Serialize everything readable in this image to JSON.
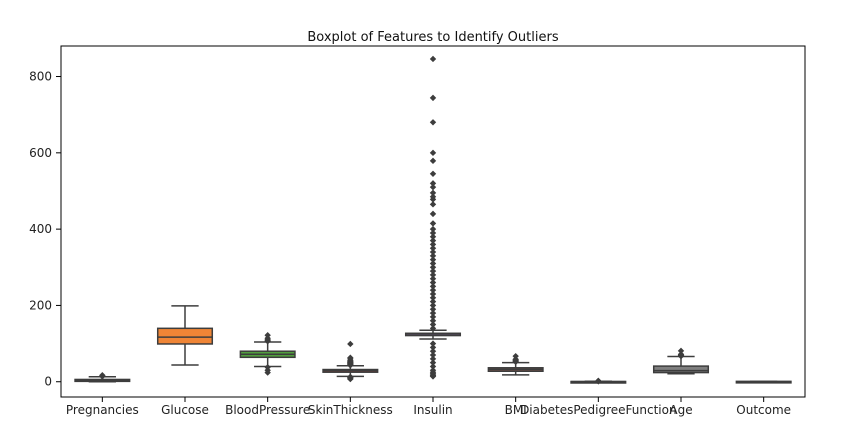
{
  "chart_data": {
    "type": "boxplot",
    "title": "Boxplot of Features to Identify Outliers",
    "xlabel": "",
    "ylabel": "",
    "ylim": [
      -40,
      880
    ],
    "yticks": [
      0,
      200,
      400,
      600,
      800
    ],
    "grid": false,
    "legend": "none",
    "categories": [
      "Pregnancies",
      "Glucose",
      "BloodPressure",
      "SkinThickness",
      "Insulin",
      "BMI",
      "DiabetesPedigreeFunction",
      "Age",
      "Outcome"
    ],
    "colors": [
      "#3b75af",
      "#ef8536",
      "#519e3e",
      "#c53a32",
      "#8d6ab8",
      "#84584e",
      "#d57fbe",
      "#7f7f7f",
      "#bcbc45"
    ],
    "boxes": [
      {
        "name": "Pregnancies",
        "whislo": 0,
        "q1": 1,
        "med": 3,
        "q3": 6,
        "whishi": 13,
        "fliers": [
          14,
          15,
          17
        ]
      },
      {
        "name": "Glucose",
        "whislo": 44,
        "q1": 99,
        "med": 117,
        "q3": 140,
        "whishi": 199,
        "fliers": []
      },
      {
        "name": "BloodPressure",
        "whislo": 40,
        "q1": 64,
        "med": 72,
        "q3": 80,
        "whishi": 104,
        "fliers": [
          24,
          30,
          38,
          106,
          108,
          110,
          114,
          122
        ]
      },
      {
        "name": "SkinThickness",
        "whislo": 14,
        "q1": 25,
        "med": 29,
        "q3": 32,
        "whishi": 42,
        "fliers": [
          7,
          8,
          10,
          11,
          12,
          13,
          43,
          44,
          45,
          46,
          47,
          48,
          49,
          50,
          51,
          52,
          54,
          56,
          60,
          63,
          99
        ]
      },
      {
        "name": "Insulin",
        "whislo": 112,
        "q1": 121,
        "med": 125,
        "q3": 127,
        "whishi": 135,
        "fliers": [
          14,
          15,
          16,
          18,
          22,
          25,
          30,
          40,
          50,
          60,
          70,
          80,
          90,
          100,
          140,
          150,
          160,
          170,
          180,
          190,
          200,
          210,
          220,
          230,
          240,
          250,
          260,
          270,
          280,
          290,
          300,
          310,
          320,
          330,
          340,
          350,
          360,
          370,
          380,
          390,
          400,
          415,
          440,
          465,
          478,
          485,
          495,
          510,
          520,
          545,
          579,
          600,
          680,
          744,
          846
        ]
      },
      {
        "name": "BMI",
        "whislo": 18,
        "q1": 27.5,
        "med": 32.3,
        "q3": 36.6,
        "whishi": 50,
        "fliers": [
          52,
          53,
          55,
          57,
          59,
          67
        ]
      },
      {
        "name": "DiabetesPedigreeFunction",
        "whislo": 0.08,
        "q1": 0.24,
        "med": 0.37,
        "q3": 0.63,
        "whishi": 1.2,
        "fliers": [
          1.3,
          1.5,
          1.8,
          2.1,
          2.4
        ]
      },
      {
        "name": "Age",
        "whislo": 21,
        "q1": 24,
        "med": 29,
        "q3": 41,
        "whishi": 66,
        "fliers": [
          67,
          68,
          69,
          70,
          72,
          81
        ]
      },
      {
        "name": "Outcome",
        "whislo": 0,
        "q1": 0,
        "med": 0,
        "q3": 1,
        "whishi": 1,
        "fliers": []
      }
    ]
  }
}
